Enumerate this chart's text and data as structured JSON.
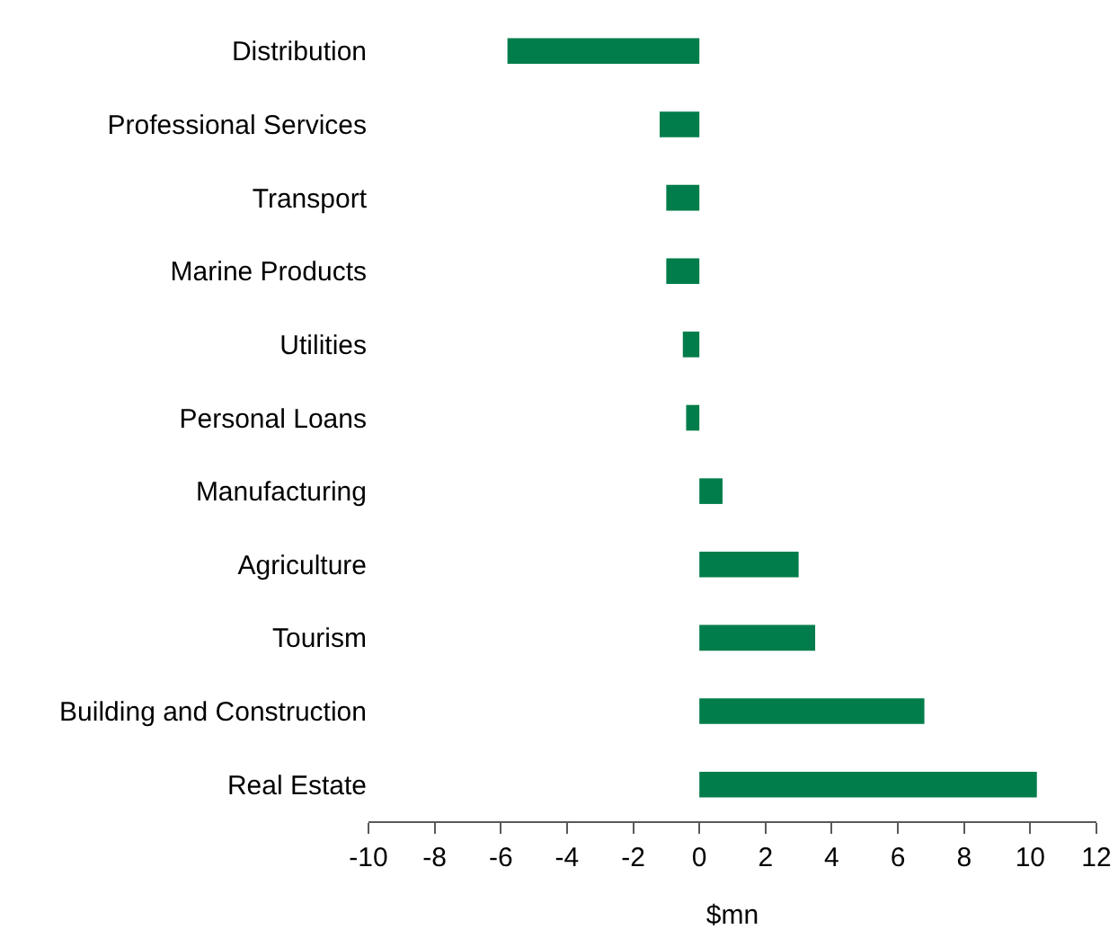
{
  "chart_data": {
    "type": "bar",
    "orientation": "horizontal",
    "xlabel": "$mn",
    "categories": [
      "Distribution",
      "Professional Services",
      "Transport",
      "Marine Products",
      "Utilities",
      "Personal Loans",
      "Manufacturing",
      "Agriculture",
      "Tourism",
      "Building and Construction",
      "Real Estate"
    ],
    "values": [
      -5.8,
      -1.2,
      -1.0,
      -1.0,
      -0.5,
      -0.4,
      0.7,
      3.0,
      3.5,
      6.8,
      10.2
    ],
    "color": "#007d4a",
    "xlim": [
      -10,
      12
    ],
    "xticks": [
      -10,
      -8,
      -6,
      -4,
      -2,
      0,
      2,
      4,
      6,
      8,
      10,
      12
    ],
    "grid": false
  }
}
